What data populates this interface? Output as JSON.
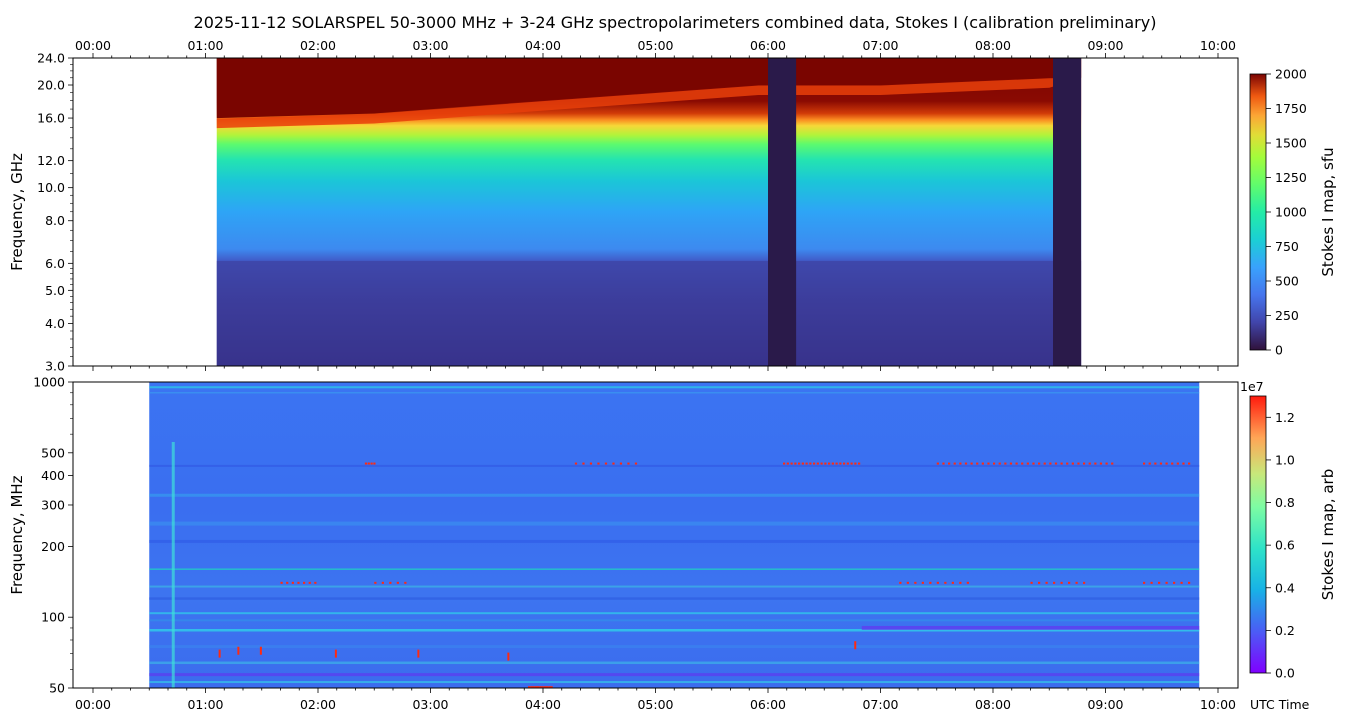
{
  "title": "2025-11-12  SOLARSPEL  50-3000 MHz  +  3-24 GHz  spectropolarimeters combined data,  Stokes I  (calibration preliminary)",
  "time_labels": [
    "00:00",
    "01:00",
    "02:00",
    "03:00",
    "04:00",
    "05:00",
    "06:00",
    "07:00",
    "08:00",
    "09:00",
    "10:00"
  ],
  "utc_label": "UTC Time",
  "colors": {
    "hot_dark": "#7a0500",
    "hot_mid": "#e8400a",
    "yellow_green": "#b6f236",
    "cyan": "#1ed6c0",
    "blue": "#3a86f0",
    "indigo": "#30217a",
    "gap": "#2a1a4a",
    "lowband_blue": "#3d6ef0",
    "rfi_red": "#ff2a10"
  },
  "chart_data": [
    {
      "type": "heatmap",
      "panel": "top",
      "ylabel": "Frequency, GHz",
      "yticks": [
        "3.0",
        "4.0",
        "5.0",
        "6.0",
        "8.0",
        "10.0",
        "12.0",
        "16.0",
        "20.0",
        "24.0"
      ],
      "yscale": "log",
      "ylim": [
        3.0,
        24.0
      ],
      "xlim": [
        "00:00",
        "10:00"
      ],
      "colorbar": {
        "label": "Stokes I map, sfu",
        "ticks": [
          "0",
          "250",
          "500",
          "750",
          "1000",
          "1250",
          "1500",
          "1750",
          "2000"
        ],
        "range": [
          0,
          2000
        ],
        "colormap": "turbo"
      },
      "data_start": "01:06",
      "data_end": "08:47",
      "gaps": [
        [
          "05:60",
          "06:15"
        ],
        [
          "08:32",
          "08:47"
        ]
      ],
      "saturation_freq_ghz": [
        [
          "01:06",
          16.0
        ],
        [
          "02:30",
          16.5
        ],
        [
          "04:00",
          18.0
        ],
        [
          "05:55",
          20.0
        ],
        [
          "07:00",
          20.0
        ],
        [
          "08:30",
          21.0
        ]
      ]
    },
    {
      "type": "heatmap",
      "panel": "bottom",
      "ylabel": "Frequency, MHz",
      "yticks": [
        "50",
        "100",
        "200",
        "300",
        "400",
        "500",
        "1000"
      ],
      "yscale": "log",
      "ylim": [
        50,
        1000
      ],
      "xlim": [
        "00:00",
        "10:00"
      ],
      "colorbar": {
        "label": "Stokes I map, arb",
        "ticks": [
          "0.0",
          "0.2",
          "0.4",
          "0.6",
          "0.8",
          "1.0",
          "1.2"
        ],
        "offset_label": "1e7",
        "range": [
          0,
          1.3
        ],
        "colormap": "rainbow"
      },
      "data_start": "00:30",
      "data_end": "09:50"
    }
  ]
}
